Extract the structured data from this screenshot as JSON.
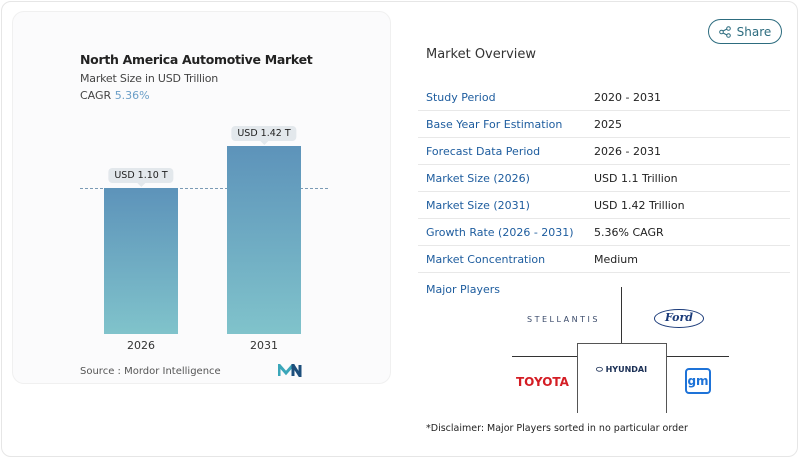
{
  "share_label": "Share",
  "chart": {
    "title": "North America Automotive Market",
    "subtitle": "Market Size in USD Trillion",
    "cagr_label": "CAGR",
    "cagr_value": "5.36%",
    "source": "Source :  Mordor Intelligence"
  },
  "chart_data": {
    "type": "bar",
    "categories": [
      "2026",
      "2031"
    ],
    "values": [
      1.1,
      1.42
    ],
    "data_labels": [
      "USD 1.10 T",
      "USD 1.42 T"
    ],
    "title": "North America Automotive Market",
    "ylabel": "Market Size in USD Trillion",
    "ylim": [
      0,
      1.42
    ],
    "reference_line": 1.1,
    "colors": [
      "#5d93ba",
      "#80c3cb"
    ]
  },
  "overview": {
    "title": "Market Overview",
    "rows": [
      {
        "label": "Study Period",
        "value": "2020 - 2031"
      },
      {
        "label": "Base Year For Estimation",
        "value": "2025"
      },
      {
        "label": "Forecast Data Period",
        "value": "2026 - 2031"
      },
      {
        "label": "Market Size (2026)",
        "value": "USD 1.1 Trillion"
      },
      {
        "label": "Market Size (2031)",
        "value": "USD 1.42 Trillion"
      },
      {
        "label": "Growth Rate (2026 - 2031)",
        "value": "5.36% CAGR"
      },
      {
        "label": "Market Concentration",
        "value": "Medium"
      }
    ]
  },
  "players": {
    "title": "Major Players",
    "logos": [
      "STELLANTIS",
      "Ford",
      "HYUNDAI",
      "TOYOTA",
      "gm"
    ],
    "disclaimer": "*Disclaimer: Major Players sorted in no particular order"
  }
}
